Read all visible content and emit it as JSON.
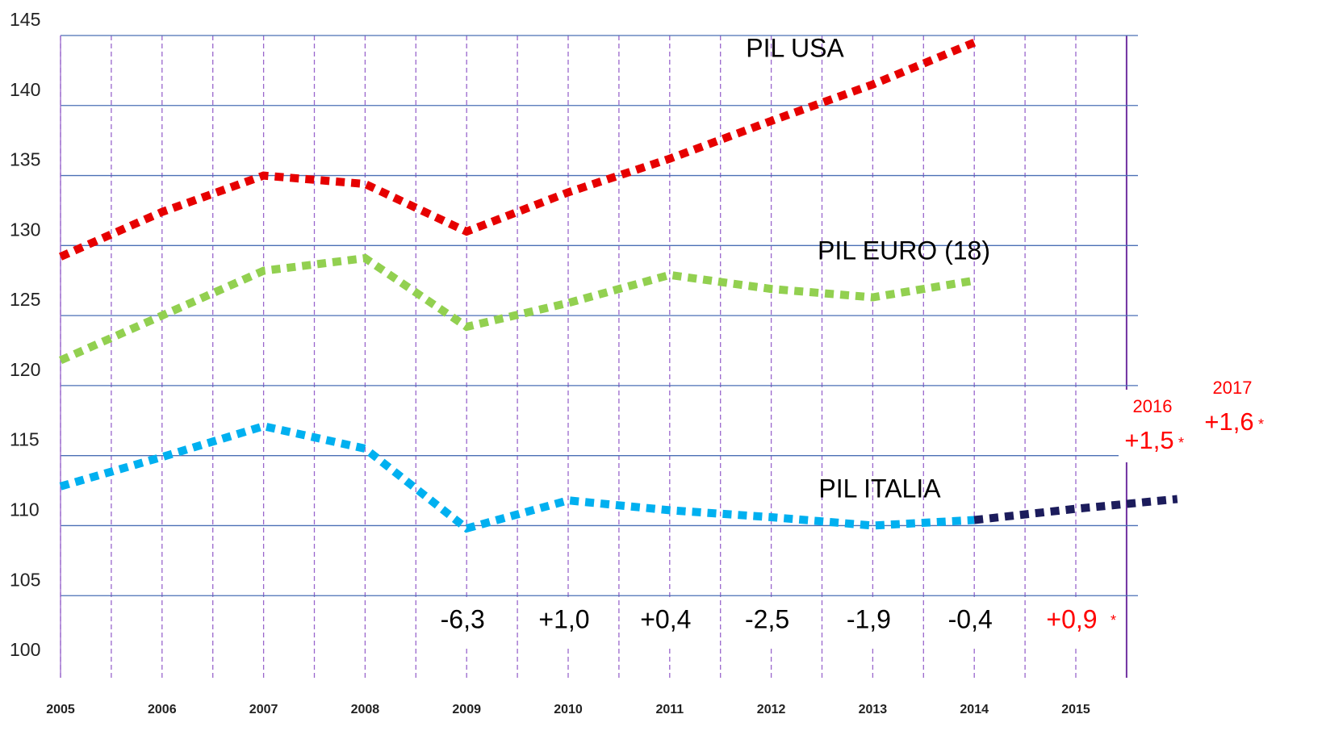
{
  "chart_data": {
    "type": "line",
    "xlim": [
      2005,
      2016.2
    ],
    "xticks": [
      2005,
      2006,
      2007,
      2008,
      2009,
      2010,
      2011,
      2012,
      2013,
      2014,
      2015
    ],
    "ylim": [
      100,
      145
    ],
    "yticks": [
      100,
      105,
      110,
      115,
      120,
      125,
      130,
      135,
      140,
      145
    ],
    "grid": true,
    "series": [
      {
        "name": "PIL USA",
        "color": "#e60000",
        "x": [
          2005,
          2006,
          2007,
          2008,
          2009,
          2010,
          2011,
          2012,
          2013,
          2014
        ],
        "values": [
          129.2,
          132.4,
          135,
          134.4,
          131,
          133.8,
          136.2,
          138.9,
          141.5,
          144.5
        ]
      },
      {
        "name": "PIL EURO (18)",
        "color": "#92d050",
        "x": [
          2005,
          2006,
          2007,
          2008,
          2009,
          2010,
          2011,
          2012,
          2013,
          2014
        ],
        "values": [
          121.8,
          125,
          128.2,
          129.1,
          124.2,
          125.9,
          127.9,
          126.9,
          126.3,
          127.5
        ]
      },
      {
        "name": "PIL ITALIA",
        "color": "#00b0f0",
        "x": [
          2005,
          2006,
          2007,
          2008,
          2009,
          2010,
          2011,
          2012,
          2013,
          2014
        ],
        "values": [
          112.8,
          114.9,
          117.1,
          115.5,
          109.8,
          111.8,
          111.1,
          110.6,
          110,
          110.4
        ]
      },
      {
        "color": "#1c1c5c",
        "x": [
          2014,
          2015,
          2016
        ],
        "values": [
          110.4,
          111.2,
          111.9
        ]
      }
    ],
    "growth_labels": [
      {
        "value": -6.3,
        "label": "-6,3"
      },
      {
        "value": 1.0,
        "label": "+1,0"
      },
      {
        "value": 0.4,
        "label": "+0,4"
      },
      {
        "value": -2.5,
        "label": "-2,5"
      },
      {
        "value": -1.9,
        "label": "-1,9"
      },
      {
        "value": -0.4,
        "label": "-0,4"
      },
      {
        "value": 0.9,
        "label": "+0,9",
        "note": "*",
        "color": "#ff0000"
      }
    ],
    "forecast_labels": [
      {
        "year": "2016",
        "value": 1.5,
        "label": "+1,5",
        "note": "*",
        "color": "#ff0000"
      },
      {
        "year": "2017",
        "value": 1.6,
        "label": "+1,6",
        "note": "*",
        "color": "#ff0000"
      }
    ]
  }
}
